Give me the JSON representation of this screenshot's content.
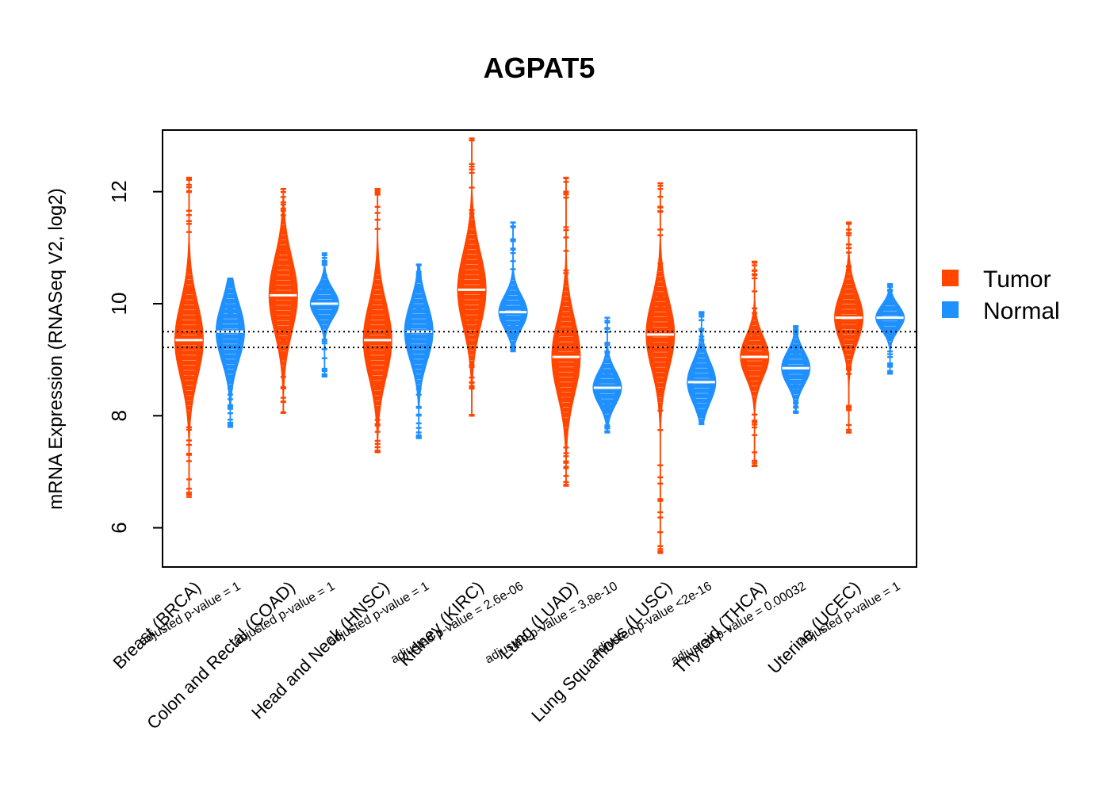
{
  "chart_data": {
    "type": "violin",
    "title": "AGPAT5",
    "xlabel": "",
    "ylabel": "mRNA Expression (RNASeq V2, log2)",
    "ylim": [
      5.3,
      13.1
    ],
    "yticks": [
      6,
      8,
      10,
      12
    ],
    "reference_lines": [
      9.5,
      9.22
    ],
    "legend": {
      "position": "right",
      "entries": [
        {
          "name": "Tumor",
          "color": "#FF4500"
        },
        {
          "name": "Normal",
          "color": "#1E90FF"
        }
      ]
    },
    "colors": {
      "tumor": "#FF4500",
      "normal": "#1E90FF",
      "median": "#ffffff"
    },
    "categories": [
      {
        "label": "Breast (BRCA)",
        "pvalue_label": "adjusted p-value = 1",
        "tumor": {
          "min": 6.55,
          "q1": 8.9,
          "median": 9.35,
          "q3": 9.8,
          "max": 12.25
        },
        "normal": {
          "min": 7.8,
          "q1": 9.1,
          "median": 9.5,
          "q3": 9.8,
          "max": 10.45
        }
      },
      {
        "label": "Colon and Rectal (COAD)",
        "pvalue_label": "adjusted p-value = 1",
        "tumor": {
          "min": 8.05,
          "q1": 9.7,
          "median": 10.15,
          "q3": 10.6,
          "max": 12.05
        },
        "normal": {
          "min": 8.7,
          "q1": 9.85,
          "median": 10.0,
          "q3": 10.2,
          "max": 10.9
        }
      },
      {
        "label": "Head and Neck (HNSC)",
        "pvalue_label": "adjusted p-value = 1",
        "tumor": {
          "min": 7.35,
          "q1": 8.9,
          "median": 9.35,
          "q3": 9.8,
          "max": 12.05
        },
        "normal": {
          "min": 7.6,
          "q1": 9.1,
          "median": 9.5,
          "q3": 9.8,
          "max": 10.7
        }
      },
      {
        "label": "Kidney (KIRC)",
        "pvalue_label": "adjusted p-value = 2.6e-06",
        "tumor": {
          "min": 8.0,
          "q1": 9.8,
          "median": 10.25,
          "q3": 10.7,
          "max": 12.95
        },
        "normal": {
          "min": 9.15,
          "q1": 9.7,
          "median": 9.85,
          "q3": 10.1,
          "max": 11.45
        }
      },
      {
        "label": "Lung (LUAD)",
        "pvalue_label": "adjusted p-value = 3.8e-10",
        "tumor": {
          "min": 6.75,
          "q1": 8.6,
          "median": 9.05,
          "q3": 9.5,
          "max": 12.25
        },
        "normal": {
          "min": 7.7,
          "q1": 8.3,
          "median": 8.5,
          "q3": 8.7,
          "max": 9.75
        }
      },
      {
        "label": "Lung Squamous (LUSC)",
        "pvalue_label": "adjusted p-value <2e-16",
        "tumor": {
          "min": 5.55,
          "q1": 9.0,
          "median": 9.45,
          "q3": 9.85,
          "max": 12.15
        },
        "normal": {
          "min": 7.85,
          "q1": 8.4,
          "median": 8.6,
          "q3": 8.9,
          "max": 9.85
        }
      },
      {
        "label": "Thyroid (THCA)",
        "pvalue_label": "adjusted p-value = 0.00032",
        "tumor": {
          "min": 7.1,
          "q1": 8.8,
          "median": 9.05,
          "q3": 9.3,
          "max": 10.75
        },
        "normal": {
          "min": 8.05,
          "q1": 8.65,
          "median": 8.85,
          "q3": 9.05,
          "max": 9.6
        }
      },
      {
        "label": "Uterine (UCEC)",
        "pvalue_label": "adjusted p-value = 1",
        "tumor": {
          "min": 7.7,
          "q1": 9.45,
          "median": 9.75,
          "q3": 10.05,
          "max": 11.45
        },
        "normal": {
          "min": 8.75,
          "q1": 9.6,
          "median": 9.75,
          "q3": 9.9,
          "max": 10.35
        }
      }
    ]
  }
}
